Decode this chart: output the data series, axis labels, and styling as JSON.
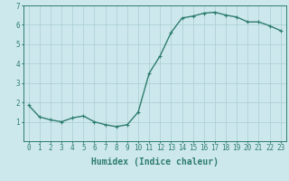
{
  "x": [
    0,
    1,
    2,
    3,
    4,
    5,
    6,
    7,
    8,
    9,
    10,
    11,
    12,
    13,
    14,
    15,
    16,
    17,
    18,
    19,
    20,
    21,
    22,
    23
  ],
  "y": [
    1.85,
    1.25,
    1.1,
    1.0,
    1.2,
    1.3,
    1.0,
    0.85,
    0.75,
    0.85,
    1.5,
    3.5,
    4.4,
    5.6,
    6.35,
    6.45,
    6.6,
    6.65,
    6.5,
    6.4,
    6.15,
    6.15,
    5.95,
    5.7
  ],
  "line_color": "#2e7d6e",
  "marker": "+",
  "marker_size": 3,
  "linewidth": 1.0,
  "xlabel": "Humidex (Indice chaleur)",
  "xlabel_fontsize": 7,
  "xlabel_weight": "bold",
  "background_color": "#cde8ec",
  "grid_color": "#a8cdd4",
  "tick_color": "#2e7d6e",
  "xlim": [
    -0.5,
    23.5
  ],
  "ylim": [
    0,
    7
  ],
  "yticks": [
    1,
    2,
    3,
    4,
    5,
    6,
    7
  ],
  "xtick_labels": [
    "0",
    "1",
    "2",
    "3",
    "4",
    "5",
    "6",
    "7",
    "8",
    "9",
    "10",
    "11",
    "12",
    "13",
    "14",
    "15",
    "16",
    "17",
    "18",
    "19",
    "20",
    "21",
    "22",
    "23"
  ],
  "tick_fontsize": 5.5,
  "spine_color": "#2e7d6e"
}
